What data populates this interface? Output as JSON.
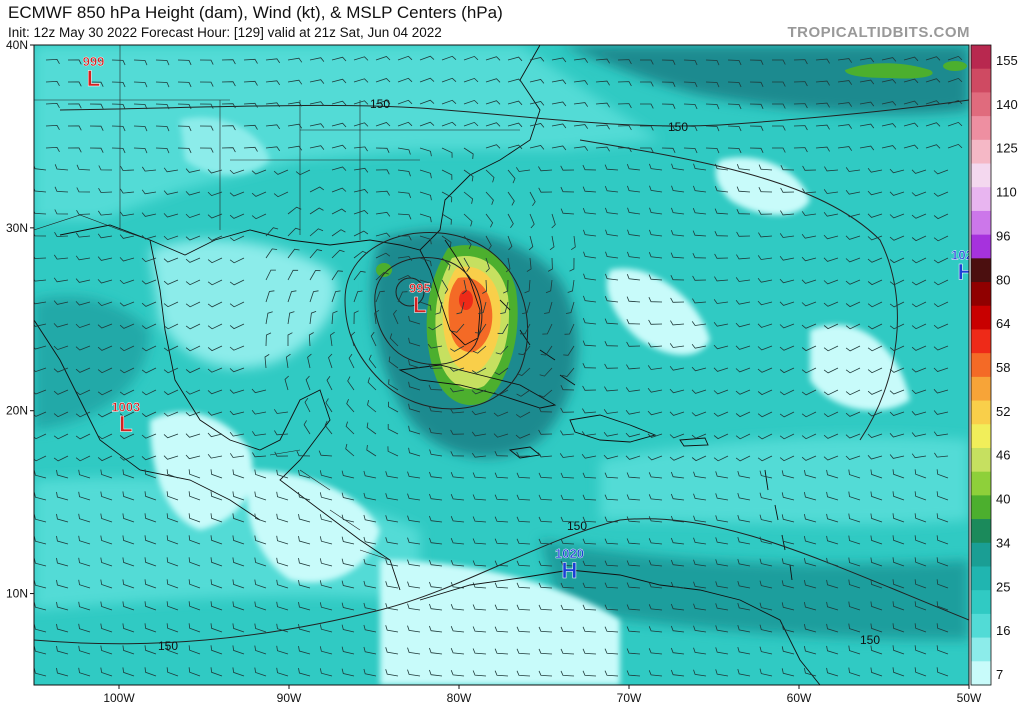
{
  "header": {
    "title": "ECMWF 850 hPa Height (dam), Wind (kt), & MSLP Centers (hPa)",
    "subtitle": "Init: 12z May 30 2022   Forecast Hour: [129]   valid at 21z Sat, Jun 04 2022",
    "brand": "TROPICALTIDBITS.COM"
  },
  "map": {
    "lat_ticks": [
      {
        "label": "40N",
        "lat": 40
      },
      {
        "label": "30N",
        "lat": 30
      },
      {
        "label": "20N",
        "lat": 20
      },
      {
        "label": "10N",
        "lat": 10
      }
    ],
    "lon_ticks": [
      {
        "label": "100W",
        "lon": -100
      },
      {
        "label": "90W",
        "lon": -90
      },
      {
        "label": "80W",
        "lon": -80
      },
      {
        "label": "70W",
        "lon": -70
      },
      {
        "label": "60W",
        "lon": -60
      },
      {
        "label": "50W",
        "lon": -50
      }
    ],
    "height_contour_label": "150",
    "pressure_centers": [
      {
        "type": "L",
        "value": "999",
        "lon": -101.5,
        "lat": 38.2,
        "color": "#d42020"
      },
      {
        "type": "L",
        "value": "995",
        "lon": -82.3,
        "lat": 25.8,
        "color": "#d42020"
      },
      {
        "type": "L",
        "value": "1003",
        "lon": -99.6,
        "lat": 19.3,
        "color": "#d42020"
      },
      {
        "type": "H",
        "value": "1020",
        "lon": -73.5,
        "lat": 11.3,
        "color": "#1a3fd6"
      },
      {
        "type": "H",
        "value": "1027",
        "lon": -50.2,
        "lat": 27.6,
        "color": "#1a3fd6"
      }
    ]
  },
  "colorbar": {
    "labels": [
      "155",
      "140",
      "125",
      "110",
      "96",
      "80",
      "64",
      "58",
      "52",
      "46",
      "40",
      "34",
      "25",
      "16",
      "7"
    ],
    "colors": [
      "#b8284f",
      "#cf4a62",
      "#e06b7d",
      "#ee8fa1",
      "#f5b8c6",
      "#f4d8ef",
      "#e8b5f0",
      "#cc77ea",
      "#a632dd",
      "#4b0f0f",
      "#900000",
      "#c80000",
      "#ee2a18",
      "#f46a26",
      "#f7a438",
      "#f9cf4a",
      "#f1ee5a",
      "#c6e060",
      "#8ed03a",
      "#4caf2e",
      "#1b8a5b",
      "#1a9e94",
      "#20b5b0",
      "#30cac3",
      "#52dbd6",
      "#8cecea",
      "#c8fbfa"
    ]
  },
  "styles": {
    "ocean_deep": "#1b8f94",
    "ocean_mid": "#2fb5b3",
    "ocean_light": "#5ed9d4",
    "pale": "#c8fbfa",
    "land_pale": "#ffffff",
    "jet_green": "#4caf2e",
    "storm_red": "#ee2a18",
    "storm_orange": "#f46a26",
    "storm_yellow": "#f1ee5a"
  }
}
